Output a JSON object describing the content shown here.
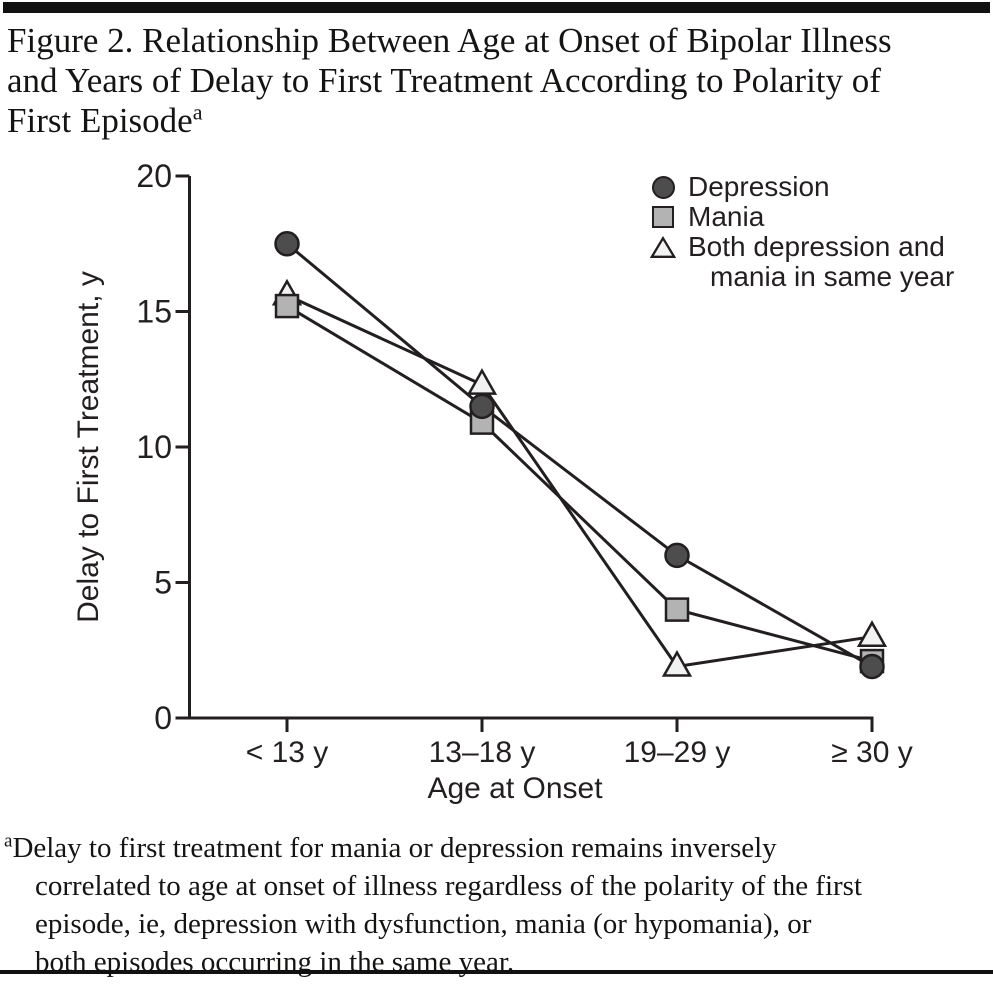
{
  "title": {
    "lines": [
      "Figure 2. Relationship Between Age at Onset of Bipolar Illness",
      "and Years of Delay to First Treatment According to Polarity of",
      "First Episode"
    ],
    "superscript": "a"
  },
  "chart_data": {
    "type": "line",
    "categories": [
      "< 13 y",
      "13–18 y",
      "19–29 y",
      "≥ 30 y"
    ],
    "series": [
      {
        "name": "Depression",
        "marker": "circle",
        "fill": "#4d4d4d",
        "values": [
          17.5,
          11.5,
          6.0,
          1.9
        ]
      },
      {
        "name": "Mania",
        "marker": "square",
        "fill": "#b3b3b3",
        "values": [
          15.2,
          10.9,
          4.0,
          2.1
        ]
      },
      {
        "name": "Both depression and mania in same year",
        "marker": "triangle",
        "fill": "#f2f2f2",
        "values": [
          15.6,
          12.3,
          1.9,
          3.0
        ]
      }
    ],
    "xlabel": "Age at Onset",
    "ylabel": "Delay to First Treatment, y",
    "ylim": [
      0,
      20
    ],
    "yticks": [
      0,
      5,
      10,
      15,
      20
    ],
    "grid": false,
    "legend_position": "top-right",
    "line_color": "#231f20"
  },
  "legend": {
    "rows": [
      {
        "marker": "circle",
        "label": "Depression"
      },
      {
        "marker": "square",
        "label": "Mania"
      },
      {
        "marker": "triangle",
        "label": "Both depression and"
      },
      {
        "marker": "none",
        "label": "mania in same year"
      }
    ]
  },
  "footnote": {
    "superscript": "a",
    "lines": [
      "Delay to first treatment for mania or depression remains inversely",
      "correlated to age at onset of illness regardless of the polarity of the first",
      "episode, ie, depression with dysfunction, mania (or hypomania), or",
      "both episodes occurring in the same year."
    ]
  }
}
